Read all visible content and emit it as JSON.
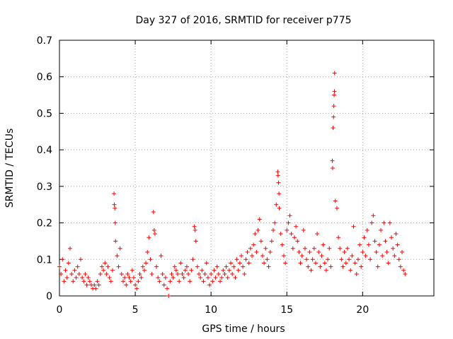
{
  "chart_data": {
    "type": "scatter",
    "title": "Day 327 of 2016, SRMTID for receiver p775",
    "xlabel": "GPS time / hours",
    "ylabel": "SRMTID / TECUs",
    "xlim": [
      0,
      24.7
    ],
    "ylim": [
      0,
      0.7
    ],
    "xticks": [
      0,
      5,
      10,
      15,
      20
    ],
    "yticks": [
      0,
      0.1,
      0.2,
      0.3,
      0.4,
      0.5,
      0.6,
      0.7
    ],
    "xtick_labels": [
      "0",
      "5",
      "10",
      "15",
      "20"
    ],
    "ytick_labels": [
      "0",
      "0.1",
      "0.2",
      "0.3",
      "0.4",
      "0.5",
      "0.6",
      "0.7"
    ],
    "grid": true,
    "marker": "+",
    "color": "#ff0000",
    "series": [
      {
        "name": "SRMTID",
        "points": [
          [
            0.0,
            0.08
          ],
          [
            0.1,
            0.06
          ],
          [
            0.2,
            0.1
          ],
          [
            0.3,
            0.04
          ],
          [
            0.4,
            0.07
          ],
          [
            0.5,
            0.05
          ],
          [
            0.6,
            0.09
          ],
          [
            0.7,
            0.13
          ],
          [
            0.8,
            0.06
          ],
          [
            0.9,
            0.04
          ],
          [
            1.0,
            0.07
          ],
          [
            1.1,
            0.05
          ],
          [
            1.2,
            0.08
          ],
          [
            1.3,
            0.06
          ],
          [
            1.4,
            0.1
          ],
          [
            1.5,
            0.05
          ],
          [
            1.6,
            0.04
          ],
          [
            1.7,
            0.06
          ],
          [
            1.8,
            0.03
          ],
          [
            1.9,
            0.05
          ],
          [
            2.0,
            0.04
          ],
          [
            2.1,
            0.03
          ],
          [
            2.2,
            0.02
          ],
          [
            2.3,
            0.03
          ],
          [
            2.4,
            0.02
          ],
          [
            2.5,
            0.04
          ],
          [
            2.6,
            0.03
          ],
          [
            2.7,
            0.06
          ],
          [
            2.8,
            0.08
          ],
          [
            2.9,
            0.07
          ],
          [
            3.0,
            0.09
          ],
          [
            3.1,
            0.06
          ],
          [
            3.2,
            0.08
          ],
          [
            3.3,
            0.05
          ],
          [
            3.4,
            0.04
          ],
          [
            3.5,
            0.07
          ],
          [
            3.6,
            0.28
          ],
          [
            3.62,
            0.25
          ],
          [
            3.65,
            0.24
          ],
          [
            3.68,
            0.2
          ],
          [
            3.7,
            0.15
          ],
          [
            3.8,
            0.11
          ],
          [
            3.9,
            0.08
          ],
          [
            4.0,
            0.13
          ],
          [
            4.1,
            0.06
          ],
          [
            4.2,
            0.04
          ],
          [
            4.3,
            0.05
          ],
          [
            4.4,
            0.03
          ],
          [
            4.5,
            0.06
          ],
          [
            4.6,
            0.05
          ],
          [
            4.7,
            0.04
          ],
          [
            4.8,
            0.07
          ],
          [
            4.9,
            0.05
          ],
          [
            5.0,
            0.03
          ],
          [
            5.1,
            0.02
          ],
          [
            5.2,
            0.04
          ],
          [
            5.3,
            0.06
          ],
          [
            5.4,
            0.05
          ],
          [
            5.5,
            0.08
          ],
          [
            5.6,
            0.07
          ],
          [
            5.7,
            0.09
          ],
          [
            5.8,
            0.12
          ],
          [
            5.9,
            0.16
          ],
          [
            6.0,
            0.1
          ],
          [
            6.1,
            0.06
          ],
          [
            6.2,
            0.23
          ],
          [
            6.25,
            0.18
          ],
          [
            6.3,
            0.17
          ],
          [
            6.4,
            0.08
          ],
          [
            6.5,
            0.05
          ],
          [
            6.6,
            0.04
          ],
          [
            6.7,
            0.11
          ],
          [
            6.8,
            0.06
          ],
          [
            6.9,
            0.03
          ],
          [
            7.0,
            0.05
          ],
          [
            7.1,
            0.02
          ],
          [
            7.2,
            0.0
          ],
          [
            7.3,
            0.04
          ],
          [
            7.4,
            0.06
          ],
          [
            7.5,
            0.05
          ],
          [
            7.6,
            0.08
          ],
          [
            7.7,
            0.07
          ],
          [
            7.8,
            0.06
          ],
          [
            7.9,
            0.04
          ],
          [
            8.0,
            0.09
          ],
          [
            8.1,
            0.06
          ],
          [
            8.2,
            0.05
          ],
          [
            8.3,
            0.07
          ],
          [
            8.4,
            0.08
          ],
          [
            8.5,
            0.06
          ],
          [
            8.6,
            0.04
          ],
          [
            8.7,
            0.07
          ],
          [
            8.8,
            0.1
          ],
          [
            8.9,
            0.19
          ],
          [
            8.95,
            0.18
          ],
          [
            9.0,
            0.15
          ],
          [
            9.1,
            0.08
          ],
          [
            9.2,
            0.06
          ],
          [
            9.3,
            0.05
          ],
          [
            9.4,
            0.07
          ],
          [
            9.5,
            0.04
          ],
          [
            9.6,
            0.06
          ],
          [
            9.7,
            0.09
          ],
          [
            9.8,
            0.05
          ],
          [
            9.9,
            0.03
          ],
          [
            10.0,
            0.06
          ],
          [
            10.1,
            0.04
          ],
          [
            10.2,
            0.07
          ],
          [
            10.3,
            0.05
          ],
          [
            10.4,
            0.08
          ],
          [
            10.5,
            0.06
          ],
          [
            10.6,
            0.04
          ],
          [
            10.7,
            0.05
          ],
          [
            10.8,
            0.07
          ],
          [
            10.9,
            0.06
          ],
          [
            11.0,
            0.08
          ],
          [
            11.1,
            0.05
          ],
          [
            11.2,
            0.07
          ],
          [
            11.3,
            0.09
          ],
          [
            11.4,
            0.06
          ],
          [
            11.5,
            0.08
          ],
          [
            11.6,
            0.05
          ],
          [
            11.7,
            0.1
          ],
          [
            11.8,
            0.07
          ],
          [
            11.9,
            0.09
          ],
          [
            12.0,
            0.11
          ],
          [
            12.1,
            0.08
          ],
          [
            12.2,
            0.06
          ],
          [
            12.3,
            0.1
          ],
          [
            12.4,
            0.12
          ],
          [
            12.5,
            0.09
          ],
          [
            12.6,
            0.13
          ],
          [
            12.7,
            0.11
          ],
          [
            12.8,
            0.14
          ],
          [
            12.9,
            0.17
          ],
          [
            13.0,
            0.12
          ],
          [
            13.1,
            0.18
          ],
          [
            13.2,
            0.21
          ],
          [
            13.3,
            0.15
          ],
          [
            13.4,
            0.11
          ],
          [
            13.5,
            0.09
          ],
          [
            13.6,
            0.13
          ],
          [
            13.7,
            0.1
          ],
          [
            13.8,
            0.08
          ],
          [
            13.9,
            0.12
          ],
          [
            14.0,
            0.15
          ],
          [
            14.1,
            0.18
          ],
          [
            14.2,
            0.2
          ],
          [
            14.3,
            0.25
          ],
          [
            14.4,
            0.34
          ],
          [
            14.42,
            0.33
          ],
          [
            14.45,
            0.31
          ],
          [
            14.48,
            0.28
          ],
          [
            14.5,
            0.24
          ],
          [
            14.6,
            0.17
          ],
          [
            14.7,
            0.14
          ],
          [
            14.8,
            0.11
          ],
          [
            14.9,
            0.09
          ],
          [
            15.0,
            0.18
          ],
          [
            15.1,
            0.2
          ],
          [
            15.2,
            0.22
          ],
          [
            15.3,
            0.17
          ],
          [
            15.4,
            0.13
          ],
          [
            15.5,
            0.16
          ],
          [
            15.6,
            0.19
          ],
          [
            15.7,
            0.15
          ],
          [
            15.8,
            0.12
          ],
          [
            15.9,
            0.09
          ],
          [
            16.0,
            0.11
          ],
          [
            16.1,
            0.18
          ],
          [
            16.2,
            0.13
          ],
          [
            16.3,
            0.1
          ],
          [
            16.4,
            0.08
          ],
          [
            16.5,
            0.12
          ],
          [
            16.6,
            0.07
          ],
          [
            16.7,
            0.1
          ],
          [
            16.8,
            0.13
          ],
          [
            16.9,
            0.09
          ],
          [
            17.0,
            0.17
          ],
          [
            17.1,
            0.12
          ],
          [
            17.2,
            0.08
          ],
          [
            17.3,
            0.11
          ],
          [
            17.4,
            0.14
          ],
          [
            17.5,
            0.09
          ],
          [
            17.6,
            0.07
          ],
          [
            17.7,
            0.1
          ],
          [
            17.8,
            0.13
          ],
          [
            17.9,
            0.08
          ],
          [
            18.0,
            0.37
          ],
          [
            18.02,
            0.35
          ],
          [
            18.05,
            0.46
          ],
          [
            18.08,
            0.49
          ],
          [
            18.1,
            0.52
          ],
          [
            18.12,
            0.55
          ],
          [
            18.14,
            0.56
          ],
          [
            18.15,
            0.61
          ],
          [
            18.2,
            0.26
          ],
          [
            18.3,
            0.24
          ],
          [
            18.4,
            0.16
          ],
          [
            18.5,
            0.13
          ],
          [
            18.6,
            0.1
          ],
          [
            18.7,
            0.08
          ],
          [
            18.8,
            0.12
          ],
          [
            18.9,
            0.09
          ],
          [
            19.0,
            0.13
          ],
          [
            19.1,
            0.1
          ],
          [
            19.2,
            0.07
          ],
          [
            19.3,
            0.11
          ],
          [
            19.4,
            0.19
          ],
          [
            19.5,
            0.09
          ],
          [
            19.6,
            0.06
          ],
          [
            19.7,
            0.1
          ],
          [
            19.8,
            0.14
          ],
          [
            19.9,
            0.08
          ],
          [
            20.0,
            0.12
          ],
          [
            20.1,
            0.16
          ],
          [
            20.2,
            0.11
          ],
          [
            20.3,
            0.18
          ],
          [
            20.4,
            0.14
          ],
          [
            20.5,
            0.1
          ],
          [
            20.6,
            0.2
          ],
          [
            20.7,
            0.22
          ],
          [
            20.8,
            0.15
          ],
          [
            20.9,
            0.12
          ],
          [
            21.0,
            0.08
          ],
          [
            21.1,
            0.14
          ],
          [
            21.2,
            0.18
          ],
          [
            21.3,
            0.11
          ],
          [
            21.4,
            0.2
          ],
          [
            21.5,
            0.15
          ],
          [
            21.6,
            0.12
          ],
          [
            21.7,
            0.09
          ],
          [
            21.8,
            0.2
          ],
          [
            21.9,
            0.16
          ],
          [
            22.0,
            0.13
          ],
          [
            22.1,
            0.11
          ],
          [
            22.2,
            0.17
          ],
          [
            22.3,
            0.14
          ],
          [
            22.4,
            0.1
          ],
          [
            22.5,
            0.08
          ],
          [
            22.6,
            0.12
          ],
          [
            22.7,
            0.07
          ],
          [
            22.8,
            0.06
          ]
        ]
      }
    ]
  }
}
